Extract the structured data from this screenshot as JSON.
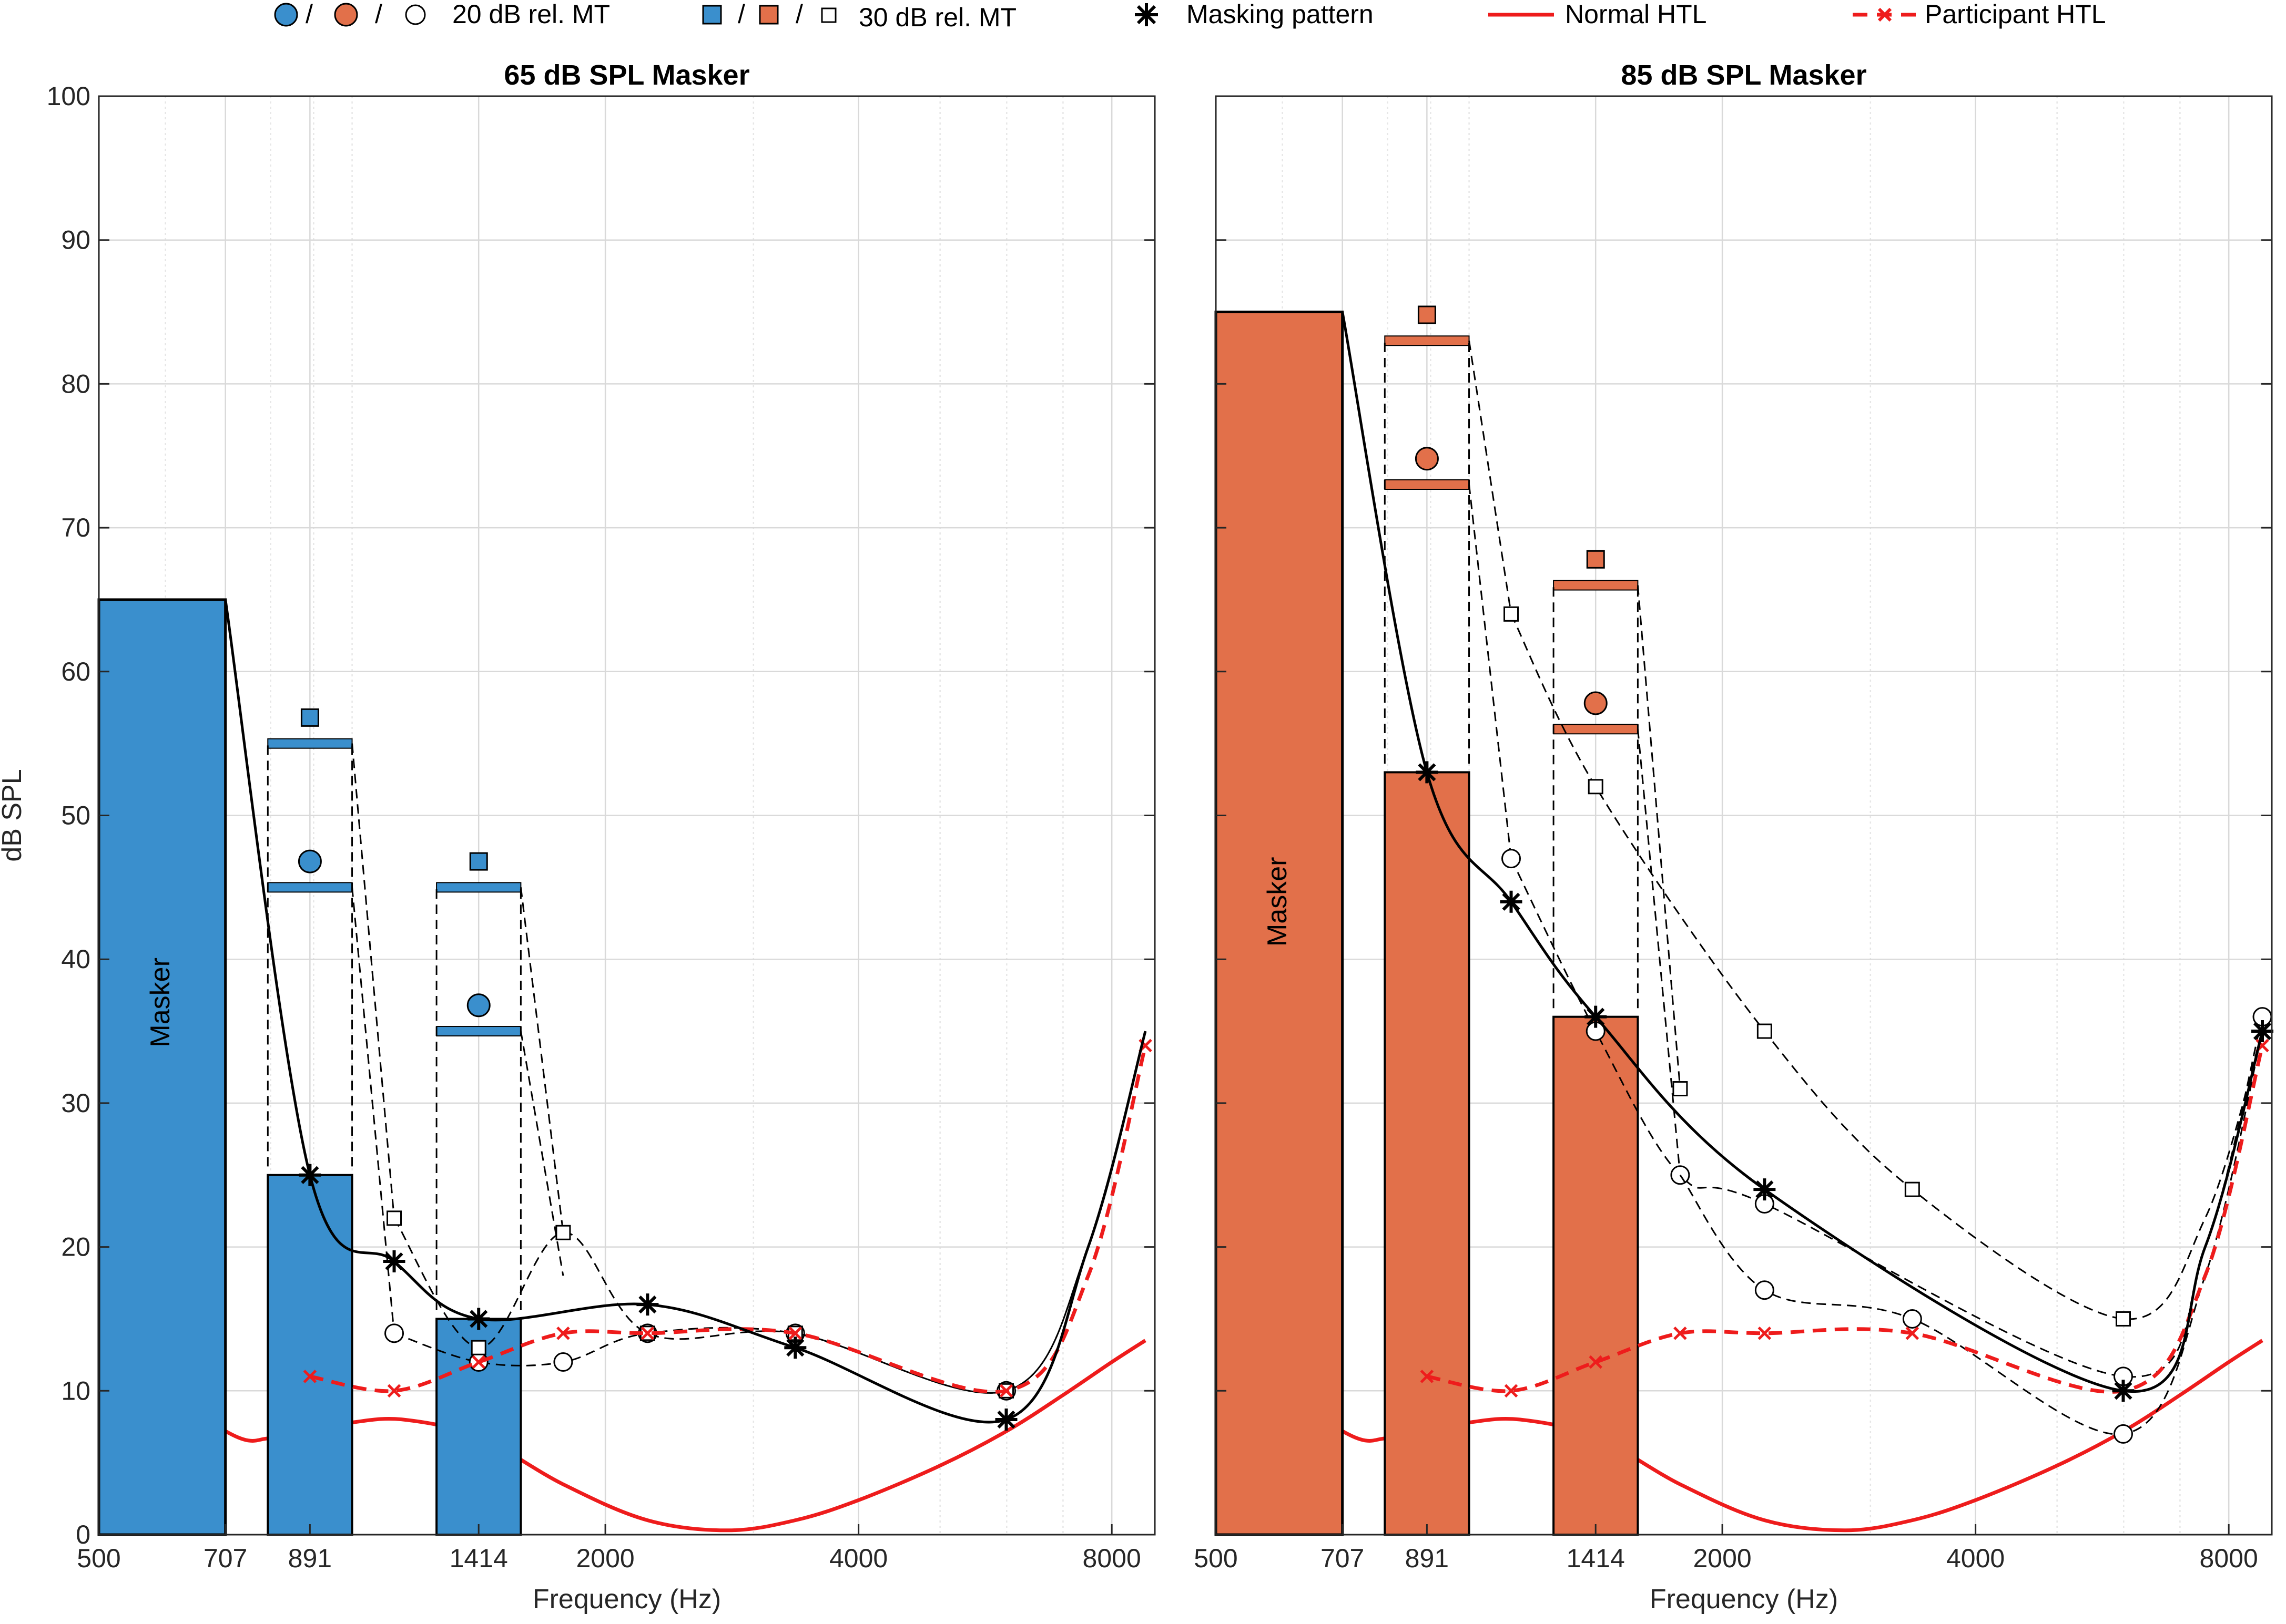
{
  "colors": {
    "blue": "#3a8fcd",
    "orange": "#e2704a",
    "red": "#ee1c1c",
    "black": "#000000",
    "grid": "#d9d9d9"
  },
  "legend": {
    "circles_label": "20 dB rel. MT",
    "squares_label": "30 dB rel. MT",
    "masking_label": "Masking pattern",
    "normal_label": "Normal HTL",
    "participant_label": "Participant HTL",
    "separator": "/"
  },
  "chart_data": [
    {
      "type": "bar",
      "title": "65 dB SPL Masker",
      "xlabel": "Frequency (Hz)",
      "ylabel": "dB SPL",
      "xscale": "log",
      "xlim": [
        500,
        9000
      ],
      "ylim": [
        0,
        100
      ],
      "xticks": [
        500,
        707,
        891,
        1414,
        2000,
        4000,
        8000
      ],
      "yticks": [
        0,
        10,
        20,
        30,
        40,
        50,
        60,
        70,
        80,
        90,
        100
      ],
      "grid": true,
      "masker_label": "Masker",
      "fill_color": "#3a8fcd",
      "masker": {
        "f_lo": 500,
        "f_hi": 707,
        "level": 65
      },
      "probe_bars": [
        {
          "f_lo": 794,
          "f_hi": 1000,
          "level": 25,
          "lvl20": 45,
          "lvl30": 55,
          "marker20": 46.8,
          "marker30": 56.8
        },
        {
          "f_lo": 1260,
          "f_hi": 1587,
          "level": 15,
          "lvl20": 35,
          "lvl30": 45,
          "marker20": 36.8,
          "marker30": 46.8
        }
      ],
      "masking_pattern": {
        "points": [
          [
            891,
            25
          ],
          [
            1122,
            19
          ],
          [
            1414,
            15
          ],
          [
            2245,
            16
          ],
          [
            3364,
            13
          ],
          [
            5993,
            8
          ]
        ],
        "curve": [
          [
            707,
            65
          ],
          [
            891,
            25
          ],
          [
            1122,
            19
          ],
          [
            1414,
            15
          ],
          [
            2245,
            16
          ],
          [
            3364,
            13
          ],
          [
            5993,
            8
          ],
          [
            7500,
            20
          ],
          [
            8770,
            35
          ]
        ]
      },
      "threshold_20": {
        "points": [
          [
            1122,
            14
          ],
          [
            1414,
            12
          ],
          [
            1782,
            12
          ],
          [
            2245,
            14
          ],
          [
            3364,
            14
          ],
          [
            5993,
            10
          ]
        ],
        "curve": [
          [
            1122,
            14
          ],
          [
            1414,
            12
          ],
          [
            1782,
            12
          ],
          [
            2245,
            14
          ],
          [
            3364,
            14
          ],
          [
            5993,
            10
          ],
          [
            7500,
            20
          ],
          [
            8770,
            35
          ]
        ]
      },
      "threshold_30": {
        "points": [
          [
            1122,
            22
          ],
          [
            1414,
            13
          ],
          [
            1782,
            21
          ],
          [
            2245,
            14
          ],
          [
            3364,
            14
          ],
          [
            5993,
            10
          ]
        ],
        "curve": [
          [
            1122,
            22
          ],
          [
            1414,
            13
          ],
          [
            1782,
            21
          ],
          [
            2245,
            14
          ],
          [
            3364,
            14
          ],
          [
            5993,
            10
          ],
          [
            7500,
            20
          ],
          [
            8770,
            35
          ]
        ]
      },
      "dashed_connectors": [
        [
          [
            794,
            25.6
          ],
          [
            794,
            55
          ]
        ],
        [
          [
            1000,
            25.6
          ],
          [
            1000,
            55
          ]
        ],
        [
          [
            1000,
            45
          ],
          [
            1122,
            14
          ]
        ],
        [
          [
            1000,
            55
          ],
          [
            1122,
            22
          ]
        ],
        [
          [
            1260,
            15.6
          ],
          [
            1260,
            45
          ]
        ],
        [
          [
            1587,
            15.6
          ],
          [
            1587,
            45
          ]
        ],
        [
          [
            1587,
            35
          ],
          [
            1782,
            18
          ]
        ],
        [
          [
            1587,
            45
          ],
          [
            1782,
            21
          ]
        ]
      ],
      "participant_htl": {
        "points": [
          [
            891,
            11
          ],
          [
            1122,
            10
          ],
          [
            1414,
            12
          ],
          [
            1782,
            14
          ],
          [
            2245,
            14
          ],
          [
            3364,
            14
          ],
          [
            5993,
            10
          ],
          [
            8770,
            34
          ]
        ],
        "curve": [
          [
            891,
            11
          ],
          [
            1122,
            10
          ],
          [
            1414,
            12
          ],
          [
            1782,
            14
          ],
          [
            2245,
            14
          ],
          [
            3364,
            14
          ],
          [
            5993,
            10
          ],
          [
            7500,
            18
          ],
          [
            8770,
            34
          ]
        ]
      },
      "normal_htl": [
        [
          500,
          13.5
        ],
        [
          707,
          7.2
        ],
        [
          800,
          6.7
        ],
        [
          891,
          7.2
        ],
        [
          1000,
          7.8
        ],
        [
          1150,
          8
        ],
        [
          1414,
          6.8
        ],
        [
          1782,
          3.5
        ],
        [
          2245,
          1
        ],
        [
          2800,
          0.3
        ],
        [
          3364,
          1
        ],
        [
          4000,
          2.4
        ],
        [
          5000,
          4.8
        ],
        [
          6000,
          7.2
        ],
        [
          7000,
          9.7
        ],
        [
          8000,
          12
        ],
        [
          8770,
          13.5
        ]
      ]
    },
    {
      "type": "bar",
      "title": "85 dB SPL Masker",
      "xlabel": "Frequency (Hz)",
      "ylabel": "",
      "xscale": "log",
      "xlim": [
        500,
        9000
      ],
      "ylim": [
        0,
        100
      ],
      "xticks": [
        500,
        707,
        891,
        1414,
        2000,
        4000,
        8000
      ],
      "yticks": [
        0,
        10,
        20,
        30,
        40,
        50,
        60,
        70,
        80,
        90,
        100
      ],
      "grid": true,
      "masker_label": "Masker",
      "fill_color": "#e2704a",
      "masker": {
        "f_lo": 500,
        "f_hi": 707,
        "level": 85
      },
      "probe_bars": [
        {
          "f_lo": 794,
          "f_hi": 1000,
          "level": 53,
          "lvl20": 73,
          "lvl30": 83,
          "marker20": 74.8,
          "marker30": 84.8
        },
        {
          "f_lo": 1260,
          "f_hi": 1587,
          "level": 36,
          "lvl20": 56,
          "lvl30": 66,
          "marker20": 57.8,
          "marker30": 67.8
        }
      ],
      "masking_pattern": {
        "points": [
          [
            891,
            53
          ],
          [
            1122,
            44
          ],
          [
            1414,
            36
          ],
          [
            2245,
            24
          ],
          [
            5993,
            10
          ],
          [
            8770,
            35
          ]
        ],
        "curve": [
          [
            707,
            85
          ],
          [
            891,
            53
          ],
          [
            1122,
            44
          ],
          [
            1414,
            36
          ],
          [
            2245,
            24
          ],
          [
            5993,
            10
          ],
          [
            7500,
            20
          ],
          [
            8770,
            35
          ]
        ]
      },
      "threshold_20": {
        "points": [
          [
            1122,
            47
          ],
          [
            1414,
            35
          ],
          [
            1782,
            25
          ],
          [
            2245,
            23
          ],
          [
            5993,
            11
          ],
          [
            8770,
            36
          ]
        ],
        "curve": [
          [
            1122,
            47
          ],
          [
            1414,
            35
          ],
          [
            1782,
            25
          ],
          [
            2245,
            23
          ],
          [
            5993,
            11
          ],
          [
            7500,
            20
          ],
          [
            8770,
            36
          ]
        ]
      },
      "threshold_20b": {
        "points": [
          [
            2245,
            17
          ],
          [
            3364,
            15
          ],
          [
            5993,
            7
          ]
        ],
        "curve": [
          [
            1782,
            25
          ],
          [
            2245,
            17
          ],
          [
            3364,
            15
          ],
          [
            5993,
            7
          ],
          [
            7500,
            18
          ],
          [
            8770,
            35
          ]
        ]
      },
      "threshold_30": {
        "points": [
          [
            1122,
            64
          ],
          [
            1414,
            52
          ],
          [
            2245,
            35
          ],
          [
            3364,
            24
          ],
          [
            5993,
            15
          ],
          [
            1782,
            31
          ]
        ],
        "curve": [
          [
            1122,
            64
          ],
          [
            1414,
            52
          ],
          [
            2245,
            35
          ],
          [
            3364,
            24
          ],
          [
            5993,
            15
          ],
          [
            7500,
            22
          ],
          [
            8770,
            35
          ]
        ]
      },
      "dashed_connectors": [
        [
          [
            794,
            53.6
          ],
          [
            794,
            83
          ]
        ],
        [
          [
            1000,
            53.6
          ],
          [
            1000,
            83
          ]
        ],
        [
          [
            1000,
            73
          ],
          [
            1122,
            47
          ]
        ],
        [
          [
            1000,
            83
          ],
          [
            1122,
            64
          ]
        ],
        [
          [
            1260,
            36.6
          ],
          [
            1260,
            66
          ]
        ],
        [
          [
            1587,
            36.6
          ],
          [
            1587,
            66
          ]
        ],
        [
          [
            1587,
            56
          ],
          [
            1782,
            25
          ]
        ],
        [
          [
            1587,
            66
          ],
          [
            1782,
            31
          ]
        ]
      ],
      "participant_htl": {
        "points": [
          [
            891,
            11
          ],
          [
            1122,
            10
          ],
          [
            1414,
            12
          ],
          [
            1782,
            14
          ],
          [
            2245,
            14
          ],
          [
            3364,
            14
          ],
          [
            5993,
            10
          ],
          [
            8770,
            34
          ]
        ],
        "curve": [
          [
            891,
            11
          ],
          [
            1122,
            10
          ],
          [
            1414,
            12
          ],
          [
            1782,
            14
          ],
          [
            2245,
            14
          ],
          [
            3364,
            14
          ],
          [
            5993,
            10
          ],
          [
            7500,
            18
          ],
          [
            8770,
            34
          ]
        ]
      },
      "normal_htl": [
        [
          500,
          13.5
        ],
        [
          707,
          7.2
        ],
        [
          800,
          6.7
        ],
        [
          891,
          7.2
        ],
        [
          1000,
          7.8
        ],
        [
          1150,
          8
        ],
        [
          1414,
          6.8
        ],
        [
          1782,
          3.5
        ],
        [
          2245,
          1
        ],
        [
          2800,
          0.3
        ],
        [
          3364,
          1
        ],
        [
          4000,
          2.4
        ],
        [
          5000,
          4.8
        ],
        [
          6000,
          7.2
        ],
        [
          7000,
          9.7
        ],
        [
          8000,
          12
        ],
        [
          8770,
          13.5
        ]
      ]
    }
  ]
}
